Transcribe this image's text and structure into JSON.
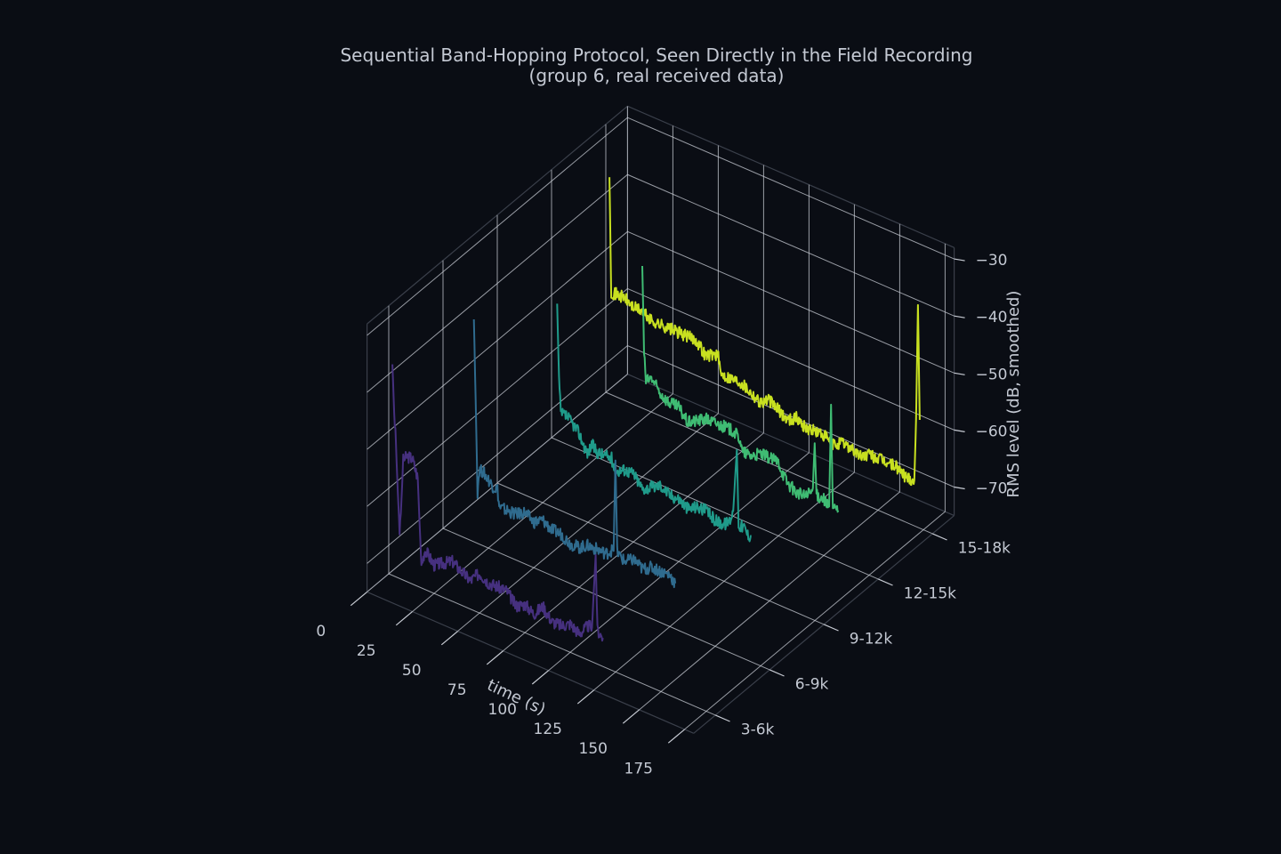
{
  "title_line1": "Sequential Band-Hopping Protocol, Seen Directly in the Field Recording",
  "title_line2": "(group 6, real received data)",
  "chart_data": {
    "type": "line",
    "subtype": "3d-waterfall",
    "x_label": "time (s)",
    "z_label": "RMS level (dB, smoothed)",
    "x_ticks": [
      "0",
      "25",
      "50",
      "75",
      "100",
      "125",
      "150",
      "175"
    ],
    "y_ticks": [
      "3-6k",
      "6-9k",
      "9-12k",
      "12-15k",
      "15-18k"
    ],
    "z_ticks": [
      "−30",
      "−40",
      "−50",
      "−60",
      "−70"
    ],
    "xlim": [
      0,
      180
    ],
    "zlim": [
      -75,
      -28
    ],
    "grid": true,
    "series": [
      {
        "band": "3-6k",
        "color": "#46307f",
        "points": [
          [
            2,
            -38
          ],
          [
            3,
            -46
          ],
          [
            4,
            -52
          ],
          [
            5,
            -60
          ],
          [
            6,
            -67
          ],
          [
            7,
            -61
          ],
          [
            8,
            -54
          ],
          [
            10,
            -53
          ],
          [
            13,
            -53
          ],
          [
            14,
            -54
          ],
          [
            16,
            -56
          ],
          [
            17,
            -64
          ],
          [
            18,
            -71
          ],
          [
            20,
            -68
          ],
          [
            25,
            -70
          ],
          [
            30,
            -69
          ],
          [
            35,
            -68
          ],
          [
            40,
            -69
          ],
          [
            45,
            -70
          ],
          [
            50,
            -68
          ],
          [
            55,
            -69
          ],
          [
            60,
            -69
          ],
          [
            65,
            -69
          ],
          [
            70,
            -71
          ],
          [
            75,
            -70
          ],
          [
            80,
            -71
          ],
          [
            85,
            -69
          ],
          [
            90,
            -71
          ],
          [
            95,
            -71
          ],
          [
            100,
            -70
          ],
          [
            105,
            -71
          ],
          [
            110,
            -69
          ],
          [
            112,
            -69
          ],
          [
            114,
            -56
          ],
          [
            115,
            -69
          ],
          [
            118,
            -70
          ]
        ]
      },
      {
        "band": "6-9k",
        "color": "#2f6b8e",
        "points": [
          [
            17,
            -36
          ],
          [
            18,
            -50
          ],
          [
            19,
            -66
          ],
          [
            20,
            -62
          ],
          [
            22,
            -62
          ],
          [
            25,
            -63
          ],
          [
            28,
            -64
          ],
          [
            30,
            -64
          ],
          [
            31,
            -67
          ],
          [
            35,
            -67
          ],
          [
            40,
            -67
          ],
          [
            45,
            -66
          ],
          [
            50,
            -67
          ],
          [
            55,
            -66
          ],
          [
            60,
            -67
          ],
          [
            65,
            -67
          ],
          [
            70,
            -68
          ],
          [
            75,
            -68
          ],
          [
            80,
            -67
          ],
          [
            85,
            -67
          ],
          [
            90,
            -67
          ],
          [
            93,
            -66
          ],
          [
            94,
            -66
          ],
          [
            95,
            -50
          ],
          [
            96,
            -66
          ],
          [
            100,
            -67
          ],
          [
            105,
            -66
          ],
          [
            110,
            -67
          ],
          [
            115,
            -66
          ],
          [
            120,
            -66
          ],
          [
            125,
            -66
          ],
          [
            128,
            -67
          ]
        ]
      },
      {
        "band": "9-12k",
        "color": "#1f9b8a",
        "points": [
          [
            33,
            -39
          ],
          [
            34,
            -52
          ],
          [
            35,
            -58
          ],
          [
            38,
            -58
          ],
          [
            42,
            -59
          ],
          [
            45,
            -60
          ],
          [
            48,
            -62
          ],
          [
            50,
            -63
          ],
          [
            52,
            -61
          ],
          [
            55,
            -62
          ],
          [
            60,
            -62
          ],
          [
            63,
            -62
          ],
          [
            65,
            -64
          ],
          [
            70,
            -63
          ],
          [
            75,
            -63
          ],
          [
            80,
            -65
          ],
          [
            85,
            -64
          ],
          [
            90,
            -63
          ],
          [
            95,
            -64
          ],
          [
            100,
            -64
          ],
          [
            105,
            -65
          ],
          [
            110,
            -64
          ],
          [
            115,
            -64
          ],
          [
            120,
            -65
          ],
          [
            125,
            -65
          ],
          [
            128,
            -64
          ],
          [
            130,
            -62
          ],
          [
            132,
            -51
          ],
          [
            133,
            -64
          ],
          [
            136,
            -64
          ],
          [
            138,
            -65
          ],
          [
            140,
            -65
          ]
        ]
      },
      {
        "band": "12-15k",
        "color": "#3fbc73",
        "points": [
          [
            50,
            -38
          ],
          [
            51,
            -53
          ],
          [
            52,
            -58
          ],
          [
            55,
            -57
          ],
          [
            60,
            -59
          ],
          [
            65,
            -60
          ],
          [
            70,
            -60
          ],
          [
            75,
            -62
          ],
          [
            80,
            -61
          ],
          [
            85,
            -60
          ],
          [
            90,
            -60
          ],
          [
            95,
            -60
          ],
          [
            100,
            -60
          ],
          [
            104,
            -61
          ],
          [
            105,
            -63
          ],
          [
            110,
            -63
          ],
          [
            115,
            -62
          ],
          [
            120,
            -62
          ],
          [
            125,
            -62
          ],
          [
            128,
            -64
          ],
          [
            130,
            -65
          ],
          [
            135,
            -66
          ],
          [
            140,
            -66
          ],
          [
            143,
            -65
          ],
          [
            144,
            -64
          ],
          [
            145,
            -56
          ],
          [
            146,
            -65
          ],
          [
            150,
            -65
          ],
          [
            152,
            -66
          ],
          [
            153,
            -66
          ],
          [
            154,
            -48
          ],
          [
            155,
            -66
          ],
          [
            158,
            -66
          ]
        ]
      },
      {
        "band": "15-18k",
        "color": "#c8e020",
        "points": [
          [
            2,
            -37
          ],
          [
            3,
            -57
          ],
          [
            5,
            -57
          ],
          [
            10,
            -57
          ],
          [
            15,
            -58
          ],
          [
            20,
            -58
          ],
          [
            25,
            -59
          ],
          [
            30,
            -59
          ],
          [
            35,
            -59
          ],
          [
            40,
            -59
          ],
          [
            45,
            -59
          ],
          [
            50,
            -59
          ],
          [
            55,
            -61
          ],
          [
            60,
            -60
          ],
          [
            62,
            -60
          ],
          [
            63,
            -63
          ],
          [
            65,
            -63
          ],
          [
            70,
            -63
          ],
          [
            75,
            -63
          ],
          [
            80,
            -64
          ],
          [
            85,
            -65
          ],
          [
            90,
            -64
          ],
          [
            95,
            -65
          ],
          [
            100,
            -66
          ],
          [
            105,
            -65
          ],
          [
            110,
            -66
          ],
          [
            115,
            -66
          ],
          [
            120,
            -66
          ],
          [
            125,
            -67
          ],
          [
            130,
            -66
          ],
          [
            135,
            -66
          ],
          [
            140,
            -67
          ],
          [
            145,
            -66
          ],
          [
            150,
            -66
          ],
          [
            155,
            -66
          ],
          [
            160,
            -66
          ],
          [
            165,
            -67
          ],
          [
            170,
            -67
          ],
          [
            171,
            -56
          ],
          [
            172,
            -36
          ],
          [
            173,
            -56
          ]
        ]
      }
    ]
  }
}
